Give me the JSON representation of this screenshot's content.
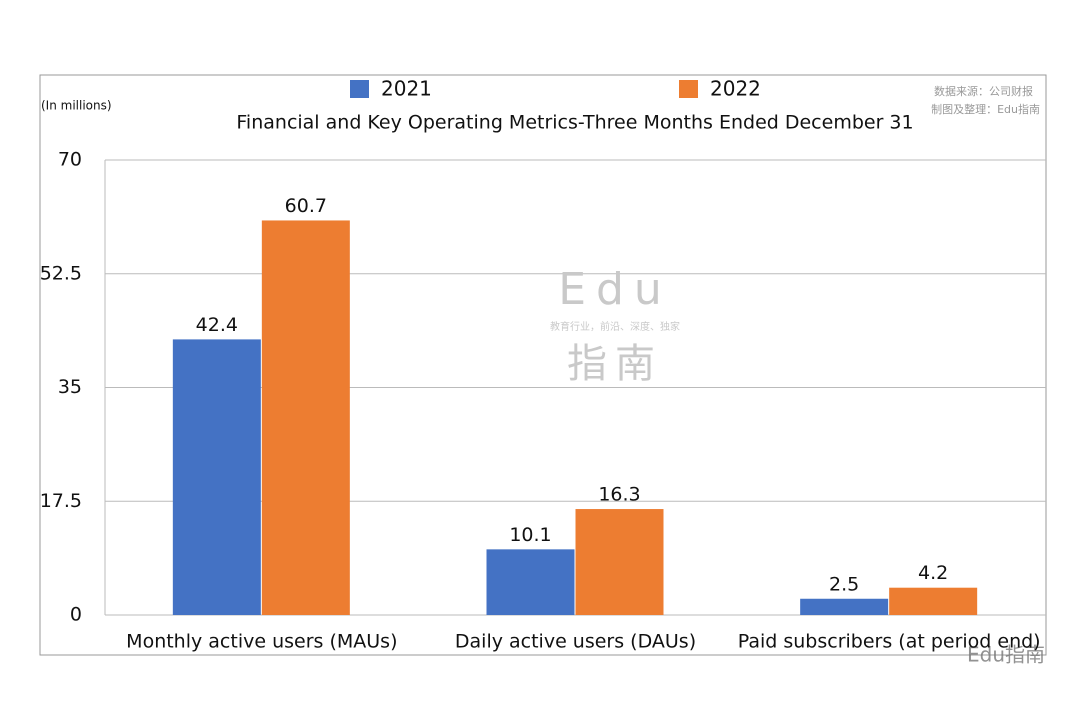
{
  "chart_data": {
    "type": "bar",
    "title": "Financial and Key Operating Metrics-Three Months Ended December 31",
    "y_label": "(In millions)",
    "source_note": "数据来源：公司财报",
    "author_note": "制图及整理：Edu指南",
    "watermark": {
      "top": "Edu",
      "middle": "教育行业，前沿、深度、独家",
      "bottom": "指南",
      "corner": "Edu指南"
    },
    "categories": [
      "Monthly active users (MAUs)",
      "Daily active users (DAUs)",
      "Paid subscribers (at period end)"
    ],
    "series": [
      {
        "name": "2021",
        "color": "#4472c4",
        "values": [
          42.4,
          10.1,
          2.5
        ]
      },
      {
        "name": "2022",
        "color": "#ed7d31",
        "values": [
          60.7,
          16.3,
          4.2
        ]
      }
    ],
    "ylim": [
      0,
      70
    ],
    "yticks": [
      0,
      17.5,
      35,
      52.5,
      70
    ],
    "grid": true
  }
}
